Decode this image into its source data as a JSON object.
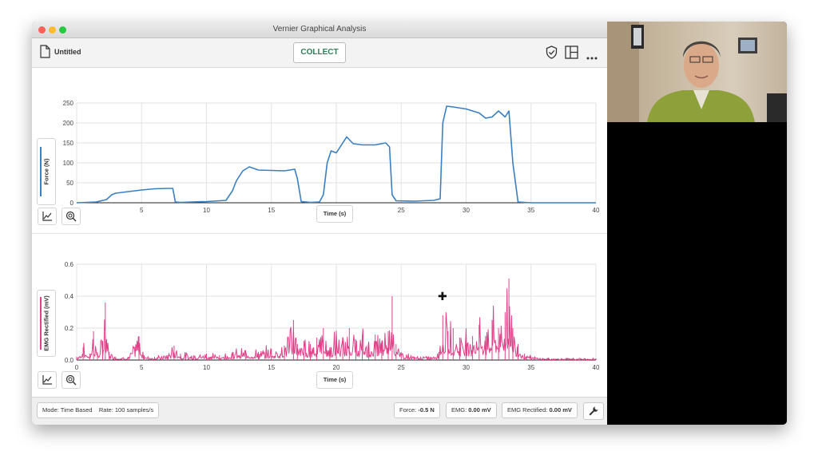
{
  "window": {
    "title": "Vernier Graphical Analysis"
  },
  "toolbar": {
    "document_title": "Untitled",
    "collect_label": "COLLECT",
    "icons": [
      "document-icon",
      "shield-check-icon",
      "layout-icon",
      "more-icon"
    ]
  },
  "graph_force": {
    "y_label": "Force (N)",
    "x_label": "Time (s)",
    "y_ticks": [
      "0",
      "50",
      "100",
      "150",
      "200",
      "250"
    ],
    "x_ticks": [
      "0",
      "5",
      "10",
      "15",
      "20",
      "25",
      "30",
      "35",
      "40"
    ],
    "color": "#3a7fc1"
  },
  "graph_emg": {
    "y_label": "EMG Rectified (mV)",
    "x_label": "Time (s)",
    "y_ticks": [
      "0.0",
      "0.2",
      "0.4",
      "0.6"
    ],
    "x_ticks": [
      "0",
      "5",
      "10",
      "15",
      "20",
      "25",
      "30",
      "35",
      "40"
    ],
    "color": "#e0428a"
  },
  "status": {
    "mode": "Mode: Time Based",
    "rate": "Rate: 100 samples/s",
    "force_label": "Force:",
    "force_value": "-0.5 N",
    "emg_label": "EMG:",
    "emg_value": "0.00 mV",
    "emg_rect_label": "EMG Rectified:",
    "emg_rect_value": "0.00 mV"
  },
  "chart_data": [
    {
      "type": "line",
      "xlabel": "Time (s)",
      "ylabel": "Force (N)",
      "xlim": [
        0,
        40
      ],
      "ylim": [
        0,
        250
      ],
      "grid": true,
      "series": [
        {
          "x": [
            0,
            1.5,
            2.3,
            2.7,
            3.0,
            4.0,
            5.0,
            6.0,
            7.0,
            7.4,
            7.6,
            8.0,
            10.0,
            11.5,
            12.0,
            12.3,
            12.8,
            13.3,
            14.0,
            15.0,
            16.0,
            16.8,
            17.0,
            17.3,
            18.0,
            18.7,
            19.0,
            19.3,
            19.6,
            20.0,
            20.5,
            20.8,
            21.3,
            22.0,
            23.0,
            23.8,
            24.1,
            24.3,
            24.6,
            26.0,
            27.5,
            28.0,
            28.2,
            28.5,
            29.0,
            30.0,
            31.0,
            31.5,
            32.0,
            32.5,
            33.0,
            33.3,
            33.6,
            34.0,
            35.0,
            40.0
          ],
          "y": [
            0,
            2,
            8,
            20,
            24,
            28,
            32,
            35,
            36,
            36,
            2,
            1,
            3,
            6,
            30,
            55,
            80,
            90,
            82,
            81,
            80,
            84,
            60,
            3,
            1,
            2,
            20,
            100,
            130,
            125,
            150,
            165,
            148,
            145,
            145,
            150,
            140,
            20,
            5,
            4,
            6,
            10,
            200,
            242,
            240,
            235,
            225,
            212,
            215,
            230,
            215,
            230,
            100,
            2,
            0,
            0
          ]
        }
      ]
    },
    {
      "type": "line",
      "xlabel": "Time (s)",
      "ylabel": "EMG Rectified (mV)",
      "xlim": [
        0,
        40
      ],
      "ylim": [
        0,
        0.6
      ],
      "grid": true,
      "series": [
        {
          "x": [
            0,
            0.5,
            1.0,
            1.3,
            1.6,
            2.0,
            2.2,
            2.5,
            3.0,
            4.0,
            4.8,
            5.2,
            6.0,
            7.0,
            7.5,
            8.0,
            9.0,
            10.0,
            11.0,
            12.0,
            13.0,
            14.0,
            15.0,
            16.0,
            16.7,
            17.0,
            17.5,
            18.0,
            18.5,
            19.0,
            19.5,
            20.0,
            20.5,
            21.0,
            21.5,
            22.0,
            22.5,
            23.0,
            23.5,
            24.0,
            24.3,
            24.6,
            25.0,
            26.0,
            27.0,
            27.9,
            28.2,
            28.6,
            29.0,
            29.5,
            30.0,
            30.5,
            31.0,
            31.5,
            32.0,
            32.5,
            33.0,
            33.3,
            33.6,
            34.0,
            34.5,
            35.0,
            36.0,
            38.0,
            40.0
          ],
          "y": [
            0.02,
            0.08,
            0.04,
            0.18,
            0.05,
            0.12,
            0.36,
            0.05,
            0.02,
            0.02,
            0.15,
            0.03,
            0.02,
            0.03,
            0.09,
            0.04,
            0.03,
            0.04,
            0.03,
            0.05,
            0.06,
            0.05,
            0.07,
            0.09,
            0.25,
            0.1,
            0.12,
            0.1,
            0.14,
            0.2,
            0.08,
            0.16,
            0.12,
            0.2,
            0.13,
            0.15,
            0.1,
            0.16,
            0.12,
            0.18,
            0.4,
            0.1,
            0.05,
            0.02,
            0.02,
            0.05,
            0.28,
            0.18,
            0.2,
            0.14,
            0.18,
            0.15,
            0.22,
            0.15,
            0.25,
            0.2,
            0.3,
            0.51,
            0.2,
            0.1,
            0.04,
            0.02,
            0.01,
            0.01,
            0.01
          ]
        }
      ]
    }
  ]
}
